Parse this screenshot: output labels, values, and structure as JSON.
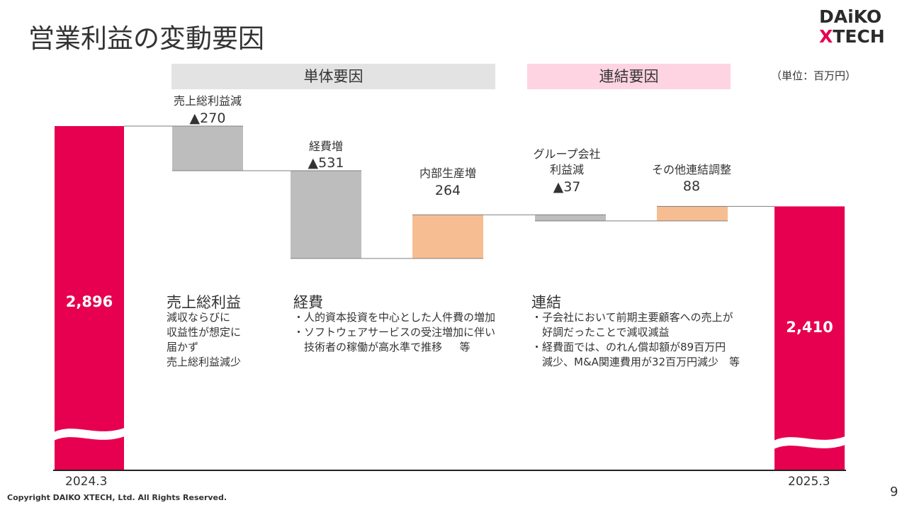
{
  "page": {
    "title": "営業利益の変動要因",
    "logo_line1": "DAiKO",
    "logo_line2_x": "X",
    "logo_line2_rest": "TECH",
    "unit": "（単位：百万円）",
    "copyright": "Copyright DAIKO XTECH, Ltd. All Rights Reserved.",
    "page_number": "9"
  },
  "bands": {
    "single": "単体要因",
    "consolidated": "連結要因"
  },
  "chart_data": {
    "type": "bar",
    "subtype": "waterfall",
    "start": {
      "label": "2024.3",
      "value": 2896,
      "display": "2,896"
    },
    "end": {
      "label": "2025.3",
      "value": 2410,
      "display": "2,410"
    },
    "steps": [
      {
        "label": "売上総利益減",
        "display": "▲270",
        "value": -270,
        "group": "単体要因"
      },
      {
        "label": "経費増",
        "display": "▲531",
        "value": -531,
        "group": "単体要因"
      },
      {
        "label": "内部生産増",
        "display": "264",
        "value": 264,
        "group": "単体要因"
      },
      {
        "label_lines": [
          "グループ会社",
          "利益減"
        ],
        "display": "▲37",
        "value": -37,
        "group": "連結要因"
      },
      {
        "label": "その他連結調整",
        "display": "88",
        "value": 88,
        "group": "連結要因"
      }
    ],
    "colors": {
      "total": "#e6004f",
      "decrease": "#bdbdbd",
      "increase": "#f7bd92"
    },
    "axis_break": true
  },
  "notes": [
    {
      "heading": "売上総利益",
      "lines": [
        "減収ならびに",
        "収益性が想定に",
        "届かず",
        "売上総利益減少"
      ]
    },
    {
      "heading": "経費",
      "lines": [
        "・人的資本投資を中心とした人件費の増加",
        "・ソフトウェアサービスの受注増加に伴い",
        "　技術者の稼働が高水準で推移　  等"
      ]
    },
    {
      "heading": "連結",
      "lines": [
        "・子会社において前期主要顧客への売上が",
        "　好調だったことで減収減益",
        "・経費面では、のれん償却額が89百万円",
        "　減少、M&A関連費用が32百万円減少　等"
      ]
    }
  ]
}
